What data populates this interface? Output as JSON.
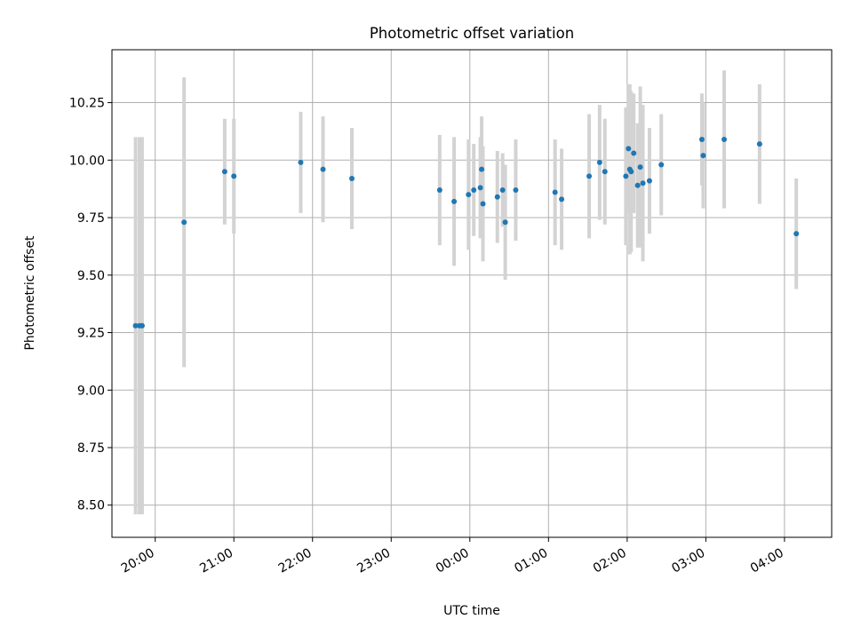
{
  "chart_data": {
    "type": "scatter",
    "title": "Photometric offset variation",
    "xlabel": "UTC time",
    "ylabel": "Photometric offset",
    "x_axis_kind": "time",
    "x_ticks": [
      {
        "time": "20:00",
        "label": "20:00"
      },
      {
        "time": "21:00",
        "label": "21:00"
      },
      {
        "time": "22:00",
        "label": "22:00"
      },
      {
        "time": "23:00",
        "label": "23:00"
      },
      {
        "time": "00:00",
        "label": "00:00"
      },
      {
        "time": "01:00",
        "label": "01:00"
      },
      {
        "time": "02:00",
        "label": "02:00"
      },
      {
        "time": "03:00",
        "label": "03:00"
      },
      {
        "time": "04:00",
        "label": "04:00"
      }
    ],
    "xlim": [
      "19:27",
      "04:36"
    ],
    "y_ticks": [
      8.5,
      8.75,
      9.0,
      9.25,
      9.5,
      9.75,
      10.0,
      10.25
    ],
    "ylim": [
      8.36,
      10.48
    ],
    "grid": true,
    "colors": {
      "points": "#1f77b4",
      "error_bars": "#d3d3d3",
      "grid": "#b0b0b0"
    },
    "points": [
      {
        "x": "19:45",
        "y": 9.28,
        "err": 0.82
      },
      {
        "x": "19:48",
        "y": 9.28,
        "err": 0.82
      },
      {
        "x": "19:50",
        "y": 9.28,
        "err": 0.82
      },
      {
        "x": "20:22",
        "y": 9.73,
        "err": 0.63
      },
      {
        "x": "20:53",
        "y": 9.95,
        "err": 0.23
      },
      {
        "x": "21:00",
        "y": 9.93,
        "err": 0.25
      },
      {
        "x": "21:51",
        "y": 9.99,
        "err": 0.22
      },
      {
        "x": "22:08",
        "y": 9.96,
        "err": 0.23
      },
      {
        "x": "22:30",
        "y": 9.92,
        "err": 0.22
      },
      {
        "x": "23:37",
        "y": 9.87,
        "err": 0.24
      },
      {
        "x": "23:48",
        "y": 9.82,
        "err": 0.28
      },
      {
        "x": "23:59",
        "y": 9.85,
        "err": 0.24
      },
      {
        "x": "00:03",
        "y": 9.87,
        "err": 0.2
      },
      {
        "x": "00:08",
        "y": 9.88,
        "err": 0.22
      },
      {
        "x": "00:09",
        "y": 9.96,
        "err": 0.23
      },
      {
        "x": "00:10",
        "y": 9.81,
        "err": 0.25
      },
      {
        "x": "00:21",
        "y": 9.84,
        "err": 0.2
      },
      {
        "x": "00:25",
        "y": 9.87,
        "err": 0.16
      },
      {
        "x": "00:27",
        "y": 9.73,
        "err": 0.25
      },
      {
        "x": "00:35",
        "y": 9.87,
        "err": 0.22
      },
      {
        "x": "01:05",
        "y": 9.86,
        "err": 0.23
      },
      {
        "x": "01:10",
        "y": 9.83,
        "err": 0.22
      },
      {
        "x": "01:31",
        "y": 9.93,
        "err": 0.27
      },
      {
        "x": "01:39",
        "y": 9.99,
        "err": 0.25
      },
      {
        "x": "01:43",
        "y": 9.95,
        "err": 0.23
      },
      {
        "x": "01:59",
        "y": 9.93,
        "err": 0.3
      },
      {
        "x": "02:01",
        "y": 10.05,
        "err": 0.28
      },
      {
        "x": "02:02",
        "y": 9.96,
        "err": 0.37
      },
      {
        "x": "02:03",
        "y": 9.95,
        "err": 0.35
      },
      {
        "x": "02:05",
        "y": 10.03,
        "err": 0.26
      },
      {
        "x": "02:08",
        "y": 9.89,
        "err": 0.27
      },
      {
        "x": "02:10",
        "y": 9.97,
        "err": 0.35
      },
      {
        "x": "02:12",
        "y": 9.9,
        "err": 0.34
      },
      {
        "x": "02:17",
        "y": 9.91,
        "err": 0.23
      },
      {
        "x": "02:26",
        "y": 9.98,
        "err": 0.22
      },
      {
        "x": "02:57",
        "y": 10.09,
        "err": 0.2
      },
      {
        "x": "02:58",
        "y": 10.02,
        "err": 0.23
      },
      {
        "x": "03:14",
        "y": 10.09,
        "err": 0.3
      },
      {
        "x": "03:41",
        "y": 10.07,
        "err": 0.26
      },
      {
        "x": "04:09",
        "y": 9.68,
        "err": 0.24
      }
    ]
  }
}
